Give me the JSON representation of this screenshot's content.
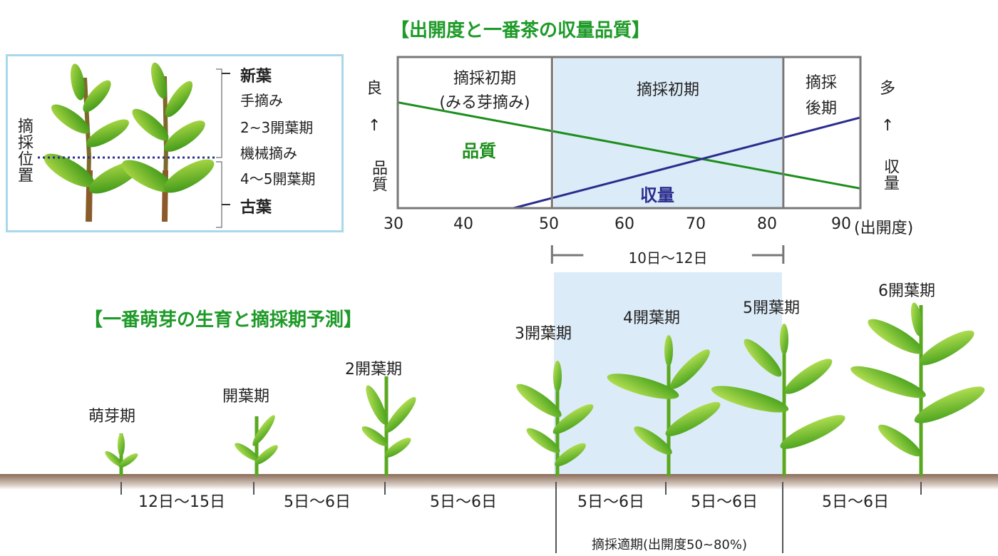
{
  "top_title": "【出開度と一番茶の収量品質】",
  "bottom_title": "【一番萌芽の生育と摘採期予測】",
  "colors": {
    "quality": "#1c8f1c",
    "yield": "#2b2d8c",
    "shade": "#dcebf8",
    "title": "#1e9a28",
    "leaf": "#4cb21d"
  },
  "inset": {
    "pluck_position": "摘採位置",
    "new_leaves": "新葉",
    "hand_picking": "手摘み",
    "hand_stage": "2~3開葉期",
    "machine_picking": "機械摘み",
    "machine_stage": "4～5開葉期",
    "old_leaves": "古葉"
  },
  "chart_data": {
    "type": "line",
    "title": "【出開度と一番茶の収量品質】",
    "xlabel": "(出開度)",
    "xlim": [
      30,
      90
    ],
    "x_ticks": [
      "30",
      "40",
      "50",
      "60",
      "70",
      "80",
      "90"
    ],
    "left_axis": {
      "top": "良",
      "arrow": "↑",
      "label": "品質"
    },
    "right_axis": {
      "top": "多",
      "arrow": "↑",
      "label": "収量"
    },
    "regions": [
      {
        "label_line1": "摘採初期",
        "label_line2": "(みる芽摘み)",
        "from": 30,
        "to": 50
      },
      {
        "label_line1": "摘採初期",
        "label_line2": "",
        "from": 50,
        "to": 80
      },
      {
        "label_line1": "摘採",
        "label_line2": "後期",
        "from": 80,
        "to": 90
      }
    ],
    "span_label": "10日～12日",
    "series": [
      {
        "name": "品質",
        "x": [
          30,
          90
        ],
        "y": [
          0.7,
          0.13
        ]
      },
      {
        "name": "収量",
        "x": [
          45,
          90
        ],
        "y": [
          0.0,
          0.6
        ]
      }
    ]
  },
  "stages": [
    {
      "label": "萌芽期"
    },
    {
      "label": "開葉期"
    },
    {
      "label": "2開葉期"
    },
    {
      "label": "3開葉期"
    },
    {
      "label": "4開葉期"
    },
    {
      "label": "5開葉期"
    },
    {
      "label": "6開葉期"
    }
  ],
  "intervals": [
    "12日～15日",
    "5日～6日",
    "5日～6日",
    "5日～6日",
    "5日～6日",
    "5日～6日"
  ],
  "optimal_label": "摘採適期(出開度50~80%)"
}
